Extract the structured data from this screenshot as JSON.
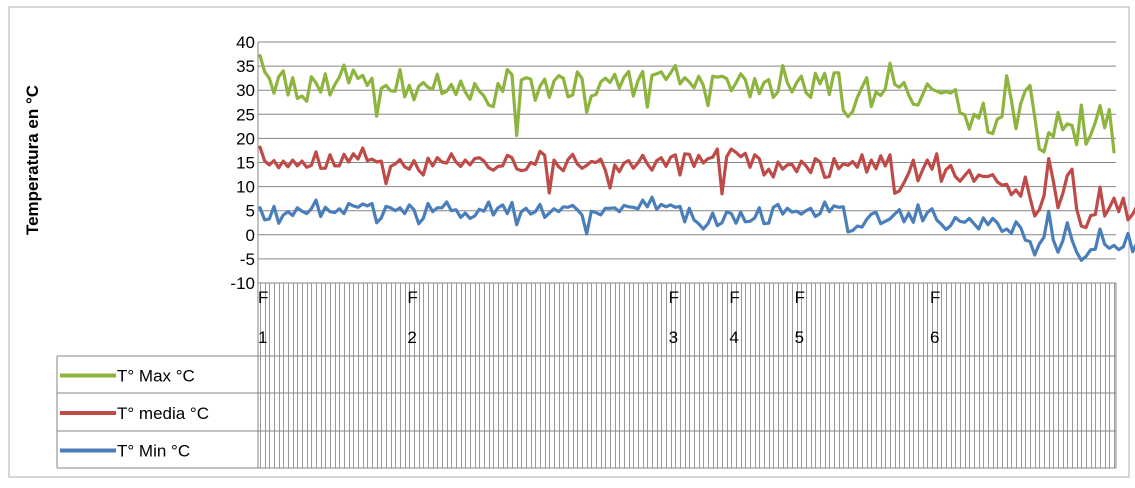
{
  "chart_data": {
    "type": "line",
    "ylabel": "Temperatura en °C",
    "ylim": [
      -10,
      40
    ],
    "y_ticks": [
      "40",
      "35",
      "30",
      "25",
      "20",
      "15",
      "10",
      "5",
      "0",
      "-5",
      "-10"
    ],
    "grid": "horizontal",
    "legend_position": "bottom-left table",
    "x_tick_labels": [
      {
        "line1": "F",
        "line2": "1",
        "index": 0
      },
      {
        "line1": "F",
        "line2": "2",
        "index": 32
      },
      {
        "line1": "F",
        "line2": "3",
        "index": 88
      },
      {
        "line1": "F",
        "line2": "4",
        "index": 101
      },
      {
        "line1": "F",
        "line2": "5",
        "index": 115
      },
      {
        "line1": "F",
        "line2": "6",
        "index": 144
      }
    ],
    "series": [
      {
        "name": "T° Max °C",
        "color": "#8DB43E",
        "values": [
          37.2,
          33.8,
          32.5,
          29.4,
          32.8,
          34,
          29,
          32.6,
          28.3,
          28.8,
          27.7,
          32.8,
          31.5,
          29.6,
          33.4,
          29,
          31.1,
          32.7,
          35.2,
          31.5,
          34.2,
          32.4,
          33.1,
          31,
          32.5,
          24.6,
          30.4,
          31,
          29.9,
          29.8,
          34.3,
          28.6,
          31,
          28,
          30.8,
          31.6,
          30.6,
          30.2,
          33.3,
          29.3,
          29.8,
          31.2,
          29.1,
          31.9,
          29.6,
          28.1,
          31.4,
          29.8,
          28.8,
          26.9,
          26.6,
          31.4,
          29.7,
          34.3,
          33.2,
          20.6,
          32.1,
          32.6,
          32.3,
          27.9,
          30.8,
          32.3,
          28.5,
          31.9,
          33,
          32.5,
          28.6,
          29,
          33.8,
          32.4,
          25.4,
          28.8,
          29.1,
          31.7,
          32.5,
          31.6,
          33.3,
          30.4,
          32.7,
          33.9,
          28.8,
          32,
          33.9,
          26.5,
          33.1,
          33.4,
          33.8,
          32.2,
          33.6,
          35.1,
          31.3,
          32.6,
          31.7,
          30.5,
          32.9,
          31,
          26.8,
          32.9,
          32.7,
          32.9,
          32.4,
          29.9,
          31.5,
          33.4,
          32.2,
          28.6,
          32.4,
          29.3,
          31.6,
          32.2,
          28.5,
          29.7,
          35.1,
          31.6,
          29.6,
          31.6,
          32.9,
          29.5,
          28.5,
          33.5,
          31.3,
          33.5,
          29.1,
          33.6,
          33.6,
          25.8,
          24.5,
          25.6,
          28.5,
          30.6,
          32.6,
          26.6,
          29.6,
          28.9,
          30.3,
          35.6,
          31.2,
          30.6,
          31.6,
          29,
          27.1,
          26.9,
          29.1,
          31.3,
          30.2,
          29.8,
          29.4,
          29.7,
          29.4,
          30.1,
          25.3,
          24.9,
          21.9,
          25,
          24.2,
          27.3,
          21.3,
          21,
          24,
          24.5,
          33,
          28,
          22,
          27.2,
          29.9,
          31,
          24.5,
          17.8,
          17.2,
          21.2,
          20.4,
          25.4,
          21.8,
          23,
          22.7,
          18.7,
          26.9,
          18.8,
          20.7,
          23.3,
          26.8,
          22.2,
          26,
          17.2
        ]
      },
      {
        "name": "T° media  °C",
        "color": "#BE4B48",
        "values": [
          18.2,
          15.3,
          14.5,
          15.4,
          13.9,
          15.3,
          14.1,
          15.5,
          14.3,
          15.3,
          14,
          14.4,
          17.2,
          13.8,
          13.8,
          16.6,
          14.3,
          14.3,
          16.7,
          15.1,
          16.8,
          15.7,
          18,
          15.4,
          15.7,
          15.1,
          15.3,
          10.6,
          14.2,
          14.7,
          15.6,
          14.1,
          13.6,
          15.4,
          13.4,
          12.4,
          15.9,
          14.3,
          16,
          15.1,
          14.9,
          16.8,
          15.1,
          14.2,
          15.5,
          14.5,
          15.8,
          16,
          15.3,
          13.9,
          13.4,
          14.2,
          14.3,
          16.5,
          16,
          13.7,
          13.3,
          13.5,
          15,
          14.6,
          17.3,
          16.5,
          8.7,
          15.5,
          14.1,
          13.3,
          15.6,
          16.7,
          14.7,
          13.8,
          14.4,
          15.2,
          15,
          15.7,
          13.4,
          9.7,
          14.5,
          13.1,
          14.9,
          15.4,
          13.8,
          14.9,
          16.5,
          14.7,
          13.4,
          15.4,
          16,
          14.2,
          16.1,
          16.6,
          12.4,
          16.8,
          16.7,
          14.2,
          16.5,
          14.9,
          15.8,
          16.1,
          17.8,
          8.5,
          16.2,
          17.8,
          17.1,
          16.2,
          16.9,
          14,
          16.6,
          15.8,
          12.4,
          13.6,
          12,
          15.1,
          13.6,
          14.5,
          14.6,
          13.1,
          15.3,
          14.3,
          12.9,
          15.8,
          15.1,
          11.9,
          12.1,
          15.8,
          13.7,
          14.7,
          14.4,
          15.2,
          14,
          16.6,
          13,
          15.5,
          13.7,
          16.4,
          14.3,
          16.6,
          8.6,
          9.1,
          10.8,
          12.8,
          15.5,
          11.2,
          13.5,
          15.5,
          13.6,
          16.8,
          11.1,
          13.5,
          14.4,
          12.1,
          11.1,
          12.3,
          13.4,
          11.1,
          12.4,
          12.1,
          12.1,
          12.5,
          11,
          10.3,
          10.5,
          8.3,
          9.3,
          8,
          12,
          7.7,
          3.9,
          5.2,
          8.1,
          15.8,
          11.2,
          5.6,
          8.5,
          12.3,
          13.6,
          5.3,
          1.8,
          1.5,
          4,
          4.2,
          9.9,
          3.9,
          5.6,
          7.6,
          4.8,
          7.6,
          3.1,
          4.3,
          6.1,
          10.2,
          6.2,
          10.6,
          0.6
        ]
      },
      {
        "name": "T° Min  °C",
        "color": "#4A7EBB",
        "values": [
          5.6,
          3.1,
          3.3,
          5.9,
          2.4,
          4.1,
          4.8,
          4,
          5.6,
          4.9,
          4.4,
          5.4,
          7.2,
          3.8,
          5.7,
          4.8,
          4.6,
          5.4,
          4.4,
          6.5,
          6,
          5.7,
          6.4,
          6,
          6.5,
          2.5,
          3.5,
          5.9,
          5.6,
          5,
          5.6,
          4.4,
          6.2,
          5.2,
          2.3,
          3.4,
          6.5,
          4.8,
          5.6,
          5.6,
          6.8,
          5,
          5.2,
          3.6,
          4.5,
          3.4,
          3.9,
          5.3,
          4.9,
          6.8,
          4.1,
          5.6,
          6.2,
          4.4,
          6.7,
          2.1,
          4.8,
          5.5,
          4.3,
          4.8,
          6.3,
          3.6,
          4.5,
          5.4,
          4.8,
          5.8,
          5.7,
          6.1,
          5.2,
          4.1,
          0.2,
          4.9,
          4.6,
          4.1,
          5.5,
          5.5,
          5.6,
          4.8,
          6.1,
          5.8,
          5.7,
          5.4,
          7.2,
          5.8,
          7.8,
          5.3,
          6.3,
          5.8,
          6.2,
          5.7,
          5.9,
          2.7,
          5.5,
          3.1,
          2.3,
          1.2,
          2.3,
          4.5,
          1.9,
          2.5,
          4.8,
          4.4,
          2.4,
          4.7,
          2.7,
          2.8,
          3.5,
          5.6,
          2.3,
          2.4,
          5.7,
          6.3,
          4.3,
          5.5,
          4.7,
          4.9,
          4.3,
          5,
          5.5,
          3.8,
          4.4,
          6.8,
          4.8,
          6,
          5.7,
          5.8,
          0.6,
          0.9,
          1.8,
          1.6,
          3.2,
          4.3,
          4.7,
          2.3,
          2.8,
          3.3,
          4.3,
          5.2,
          2.7,
          4.5,
          2.6,
          6.2,
          2.9,
          4.6,
          5.4,
          3.1,
          2.2,
          1.1,
          1.9,
          3.6,
          2.8,
          2.6,
          3.4,
          2.3,
          1.2,
          3.5,
          2.1,
          3.4,
          2.5,
          0.7,
          1.2,
          0.3,
          2.7,
          1.5,
          -1.1,
          -1.4,
          -4.2,
          -1.9,
          -0.5,
          4.9,
          -1.1,
          -3.6,
          -1.3,
          2.5,
          -1.1,
          -3.6,
          -5.3,
          -4.5,
          -3.1,
          -3,
          1.2,
          -2,
          -2.8,
          -2.2,
          -3.1,
          -2.5,
          0.3,
          -3.5,
          -1.6,
          -2.5,
          -0.2,
          -2.7,
          2.7,
          -5.4
        ]
      }
    ]
  }
}
